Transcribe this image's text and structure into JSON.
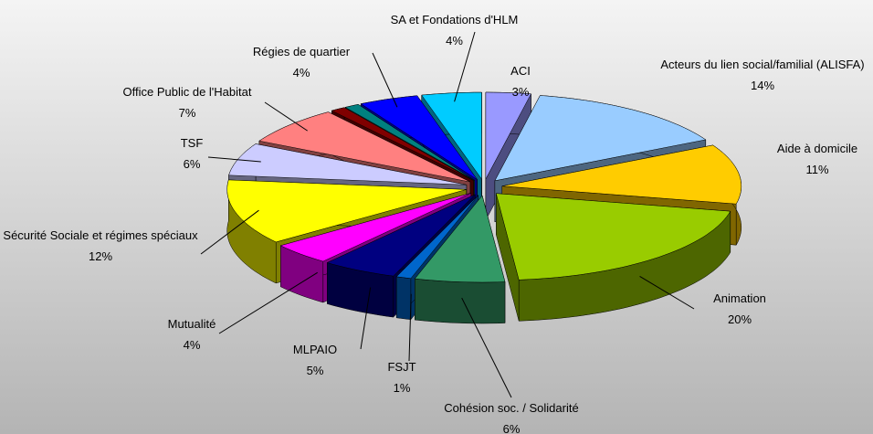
{
  "chart_data": {
    "type": "pie3d",
    "categories": [
      "ACI",
      "Acteurs du lien social/familial (ALISFA)",
      "Aide à domicile",
      "Animation",
      "Cohésion soc. / Solidarité",
      "FSJT",
      "MLPAIO",
      "Mutualité",
      "Sécurité Sociale et régimes spéciaux",
      "TSF",
      "Office Public de l'Habitat",
      null,
      null,
      "Régies de quartier",
      "SA et Fondations d'HLM"
    ],
    "values": [
      3,
      14,
      11,
      20,
      6,
      1,
      5,
      4,
      12,
      6,
      7,
      1,
      1,
      4,
      4
    ],
    "value_labels": [
      "3%",
      "14%",
      "11%",
      "20%",
      "6%",
      "1%",
      "5%",
      "4%",
      "12%",
      "6%",
      "7%",
      null,
      null,
      "4%",
      "4%"
    ],
    "colors": [
      "#9999ff",
      "#99ccff",
      "#ffcc00",
      "#99cc00",
      "#339966",
      "#0066cc",
      "#000080",
      "#ff00ff",
      "#ffff00",
      "#ccccff",
      "#ff8080",
      "#800000",
      "#008080",
      "#0000ff",
      "#00ccff"
    ]
  }
}
